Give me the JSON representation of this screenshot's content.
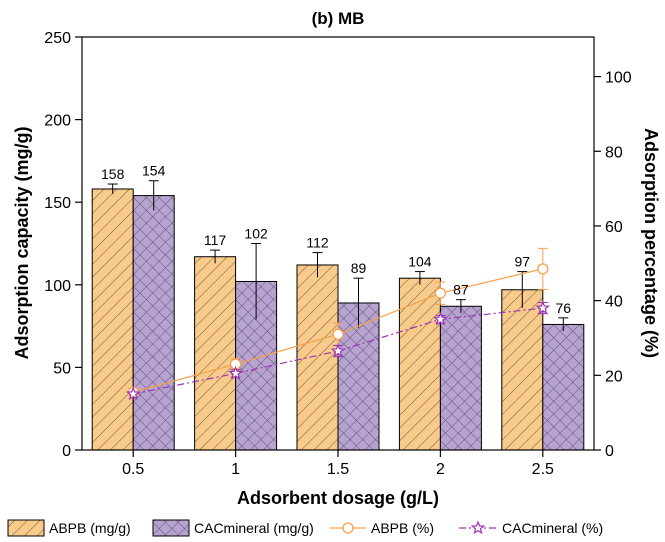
{
  "chart_data": {
    "type": "bar",
    "title": "(b) MB",
    "xlabel": "Adsorbent dosage (g/L)",
    "ylabel": "Adsorption capacity (mg/g)",
    "y2label": "Adsorption percentage (%)",
    "categories": [
      "0.5",
      "1",
      "1.5",
      "2",
      "2.5"
    ],
    "ylim": [
      0,
      250
    ],
    "y_ticks": [
      0,
      50,
      100,
      150,
      200,
      250
    ],
    "y2lim": [
      0,
      110.6
    ],
    "y2_ticks": [
      0,
      20,
      40,
      60,
      80,
      100
    ],
    "bar_series": [
      {
        "name": "ABPB (mg/g)",
        "values": [
          158,
          117,
          112,
          104,
          97
        ],
        "labels": [
          "158",
          "117",
          "112",
          "104",
          "97"
        ],
        "error": [
          3,
          4,
          7.5,
          4,
          11
        ],
        "color": "#f8cb8a",
        "pattern": "diagonal-hatch"
      },
      {
        "name": "CACmineral (mg/g)",
        "values": [
          154,
          102,
          89,
          87,
          76
        ],
        "labels": [
          "154",
          "102",
          "89",
          "87",
          "76"
        ],
        "error": [
          9,
          23,
          15,
          4,
          4
        ],
        "color": "#b7a3d0",
        "pattern": "crosshatch"
      }
    ],
    "line_series": [
      {
        "name": "ABPB (%)",
        "axis": "right",
        "values": [
          15.5,
          23,
          31,
          42,
          48.5
        ],
        "error": [
          0.5,
          1.5,
          3,
          3,
          5.5
        ],
        "color": "#f5a04a",
        "marker": "circle",
        "dash": "solid"
      },
      {
        "name": "CACmineral (%)",
        "axis": "right",
        "values": [
          15,
          20.5,
          26.5,
          35,
          38
        ],
        "error": [
          0.5,
          1,
          1.5,
          1,
          1.5
        ],
        "color": "#a032b4",
        "marker": "star",
        "dash": "dashdot"
      }
    ],
    "grid": false,
    "legend_position": "bottom"
  }
}
